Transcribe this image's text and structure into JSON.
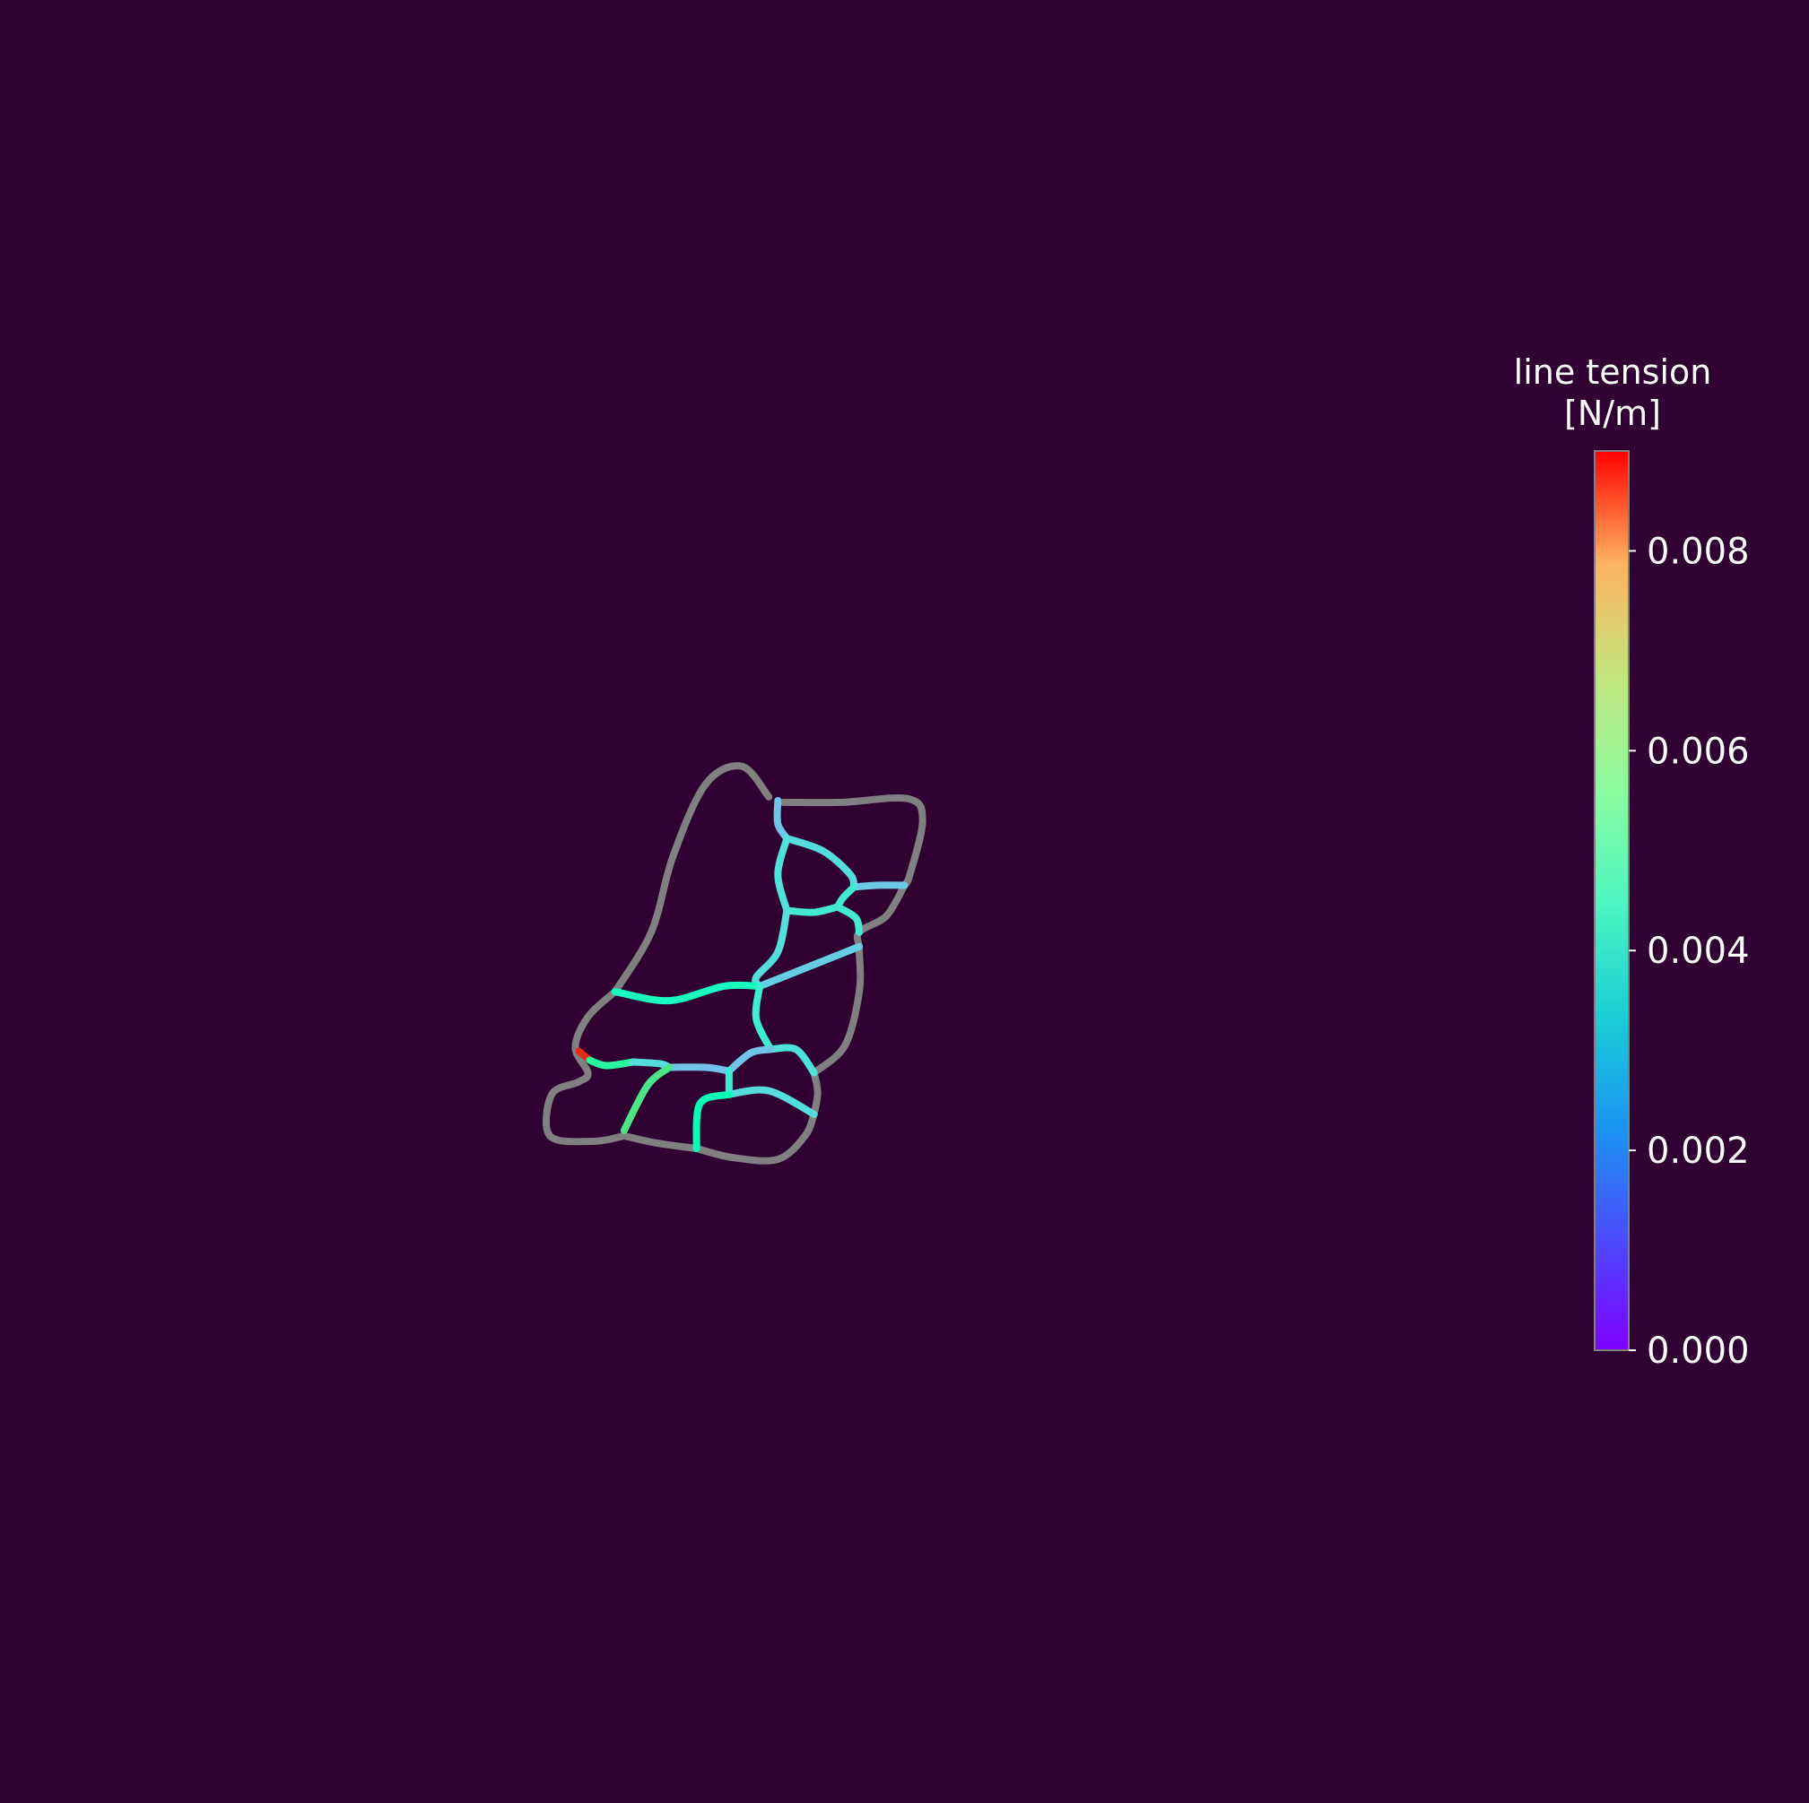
{
  "chart_data": {
    "type": "network",
    "title": "",
    "grid": false,
    "background_color": "#300033",
    "boundary_color": "#808080",
    "colormap": "rainbow",
    "colorbar": {
      "title_line1": "line tension",
      "title_line2": "[N/m]",
      "vmin": 0.0,
      "vmax": 0.009,
      "ticks": [
        0.0,
        0.002,
        0.004,
        0.006,
        0.008
      ],
      "tick_labels": [
        "0.000",
        "0.002",
        "0.004",
        "0.006",
        "0.008"
      ],
      "placement": "right"
    },
    "x_range": [
      0,
      100
    ],
    "y_range": [
      0,
      100
    ],
    "boundary_edges": [
      {
        "points": [
          [
            42.5,
            55.8
          ],
          [
            41.0,
            57.5
          ],
          [
            39.0,
            56.5
          ],
          [
            37.2,
            52.5
          ],
          [
            36.0,
            48.3
          ],
          [
            34.0,
            45.0
          ]
        ]
      },
      {
        "points": [
          [
            43.3,
            55.5
          ],
          [
            46.5,
            55.5
          ],
          [
            50.2,
            55.7
          ],
          [
            51.0,
            54.5
          ],
          [
            50.3,
            51.5
          ],
          [
            50.0,
            50.9
          ]
        ]
      },
      {
        "points": [
          [
            50.0,
            50.9
          ],
          [
            49.0,
            49.2
          ],
          [
            47.5,
            48.3
          ],
          [
            47.5,
            47.3
          ],
          [
            47.5,
            45.0
          ],
          [
            46.7,
            42.0
          ],
          [
            45.0,
            40.5
          ]
        ]
      },
      {
        "points": [
          [
            34.0,
            45.0
          ],
          [
            32.5,
            43.6
          ],
          [
            31.8,
            41.9
          ],
          [
            32.5,
            40.5
          ],
          [
            32.0,
            40.0
          ],
          [
            30.5,
            39.3
          ],
          [
            30.4,
            37.0
          ],
          [
            32.8,
            36.7
          ],
          [
            34.5,
            37.0
          ]
        ]
      },
      {
        "points": [
          [
            34.5,
            37.0
          ],
          [
            36.3,
            36.6
          ],
          [
            38.5,
            36.3
          ]
        ]
      },
      {
        "points": [
          [
            38.5,
            36.3
          ],
          [
            40.5,
            35.8
          ],
          [
            43.0,
            35.7
          ],
          [
            44.5,
            37.0
          ],
          [
            45.0,
            38.2
          ]
        ]
      },
      {
        "points": [
          [
            45.0,
            38.2
          ],
          [
            45.2,
            39.4
          ],
          [
            45.0,
            40.5
          ]
        ]
      }
    ],
    "edges": [
      {
        "tension": 0.0025,
        "points": [
          [
            43.0,
            55.6
          ],
          [
            43.0,
            54.3
          ],
          [
            43.5,
            53.5
          ]
        ]
      },
      {
        "tension": 0.003,
        "points": [
          [
            43.5,
            53.5
          ],
          [
            45.5,
            52.8
          ],
          [
            47.0,
            51.5
          ],
          [
            47.2,
            50.8
          ]
        ]
      },
      {
        "tension": 0.0026,
        "points": [
          [
            47.2,
            50.8
          ],
          [
            48.5,
            50.9
          ],
          [
            50.0,
            50.9
          ]
        ]
      },
      {
        "tension": 0.0031,
        "points": [
          [
            43.5,
            53.5
          ],
          [
            43.0,
            51.5
          ],
          [
            43.5,
            49.5
          ]
        ]
      },
      {
        "tension": 0.0033,
        "points": [
          [
            47.2,
            50.8
          ],
          [
            46.6,
            50.2
          ],
          [
            46.3,
            49.7
          ]
        ]
      },
      {
        "tension": 0.0033,
        "points": [
          [
            43.5,
            49.5
          ],
          [
            45.0,
            49.4
          ],
          [
            46.3,
            49.7
          ]
        ]
      },
      {
        "tension": 0.0033,
        "points": [
          [
            46.3,
            49.7
          ],
          [
            47.3,
            49.1
          ],
          [
            47.5,
            48.3
          ]
        ]
      },
      {
        "tension": 0.003,
        "points": [
          [
            43.5,
            49.5
          ],
          [
            43.0,
            47.2
          ],
          [
            41.8,
            45.8
          ],
          [
            42.0,
            45.3
          ]
        ]
      },
      {
        "tension": 0.0027,
        "points": [
          [
            47.5,
            47.5
          ],
          [
            45.0,
            46.5
          ],
          [
            42.0,
            45.3
          ]
        ]
      },
      {
        "tension": 0.0041,
        "points": [
          [
            34.0,
            45.0
          ],
          [
            37.0,
            44.5
          ],
          [
            40.0,
            45.3
          ],
          [
            42.0,
            45.3
          ]
        ]
      },
      {
        "tension": 0.0034,
        "points": [
          [
            42.0,
            45.3
          ],
          [
            41.8,
            43.5
          ],
          [
            42.6,
            41.8
          ]
        ]
      },
      {
        "tension": 0.0031,
        "points": [
          [
            42.6,
            41.8
          ],
          [
            44.0,
            41.8
          ],
          [
            45.0,
            40.5
          ]
        ]
      },
      {
        "tension": 0.0085,
        "points": [
          [
            32.0,
            41.7
          ],
          [
            32.6,
            41.2
          ]
        ]
      },
      {
        "tension": 0.0052,
        "points": [
          [
            32.6,
            41.2
          ],
          [
            33.5,
            40.9
          ],
          [
            35.0,
            41.1
          ]
        ]
      },
      {
        "tension": 0.003,
        "points": [
          [
            35.0,
            41.1
          ],
          [
            36.5,
            41.0
          ],
          [
            37.0,
            40.8
          ]
        ]
      },
      {
        "tension": 0.0025,
        "points": [
          [
            37.0,
            40.8
          ],
          [
            39.0,
            40.8
          ],
          [
            40.3,
            40.6
          ]
        ]
      },
      {
        "tension": 0.0025,
        "points": [
          [
            40.3,
            40.6
          ],
          [
            41.5,
            41.6
          ],
          [
            42.6,
            41.8
          ]
        ]
      },
      {
        "tension": 0.0058,
        "points": [
          [
            37.0,
            40.8
          ],
          [
            35.8,
            39.8
          ],
          [
            34.5,
            37.3
          ]
        ]
      },
      {
        "tension": 0.0034,
        "points": [
          [
            40.3,
            40.6
          ],
          [
            40.3,
            39.3
          ]
        ]
      },
      {
        "tension": 0.003,
        "points": [
          [
            40.3,
            39.3
          ],
          [
            42.5,
            39.5
          ],
          [
            45.0,
            38.2
          ]
        ]
      },
      {
        "tension": 0.0044,
        "points": [
          [
            40.3,
            39.3
          ],
          [
            38.7,
            38.8
          ],
          [
            38.5,
            36.3
          ]
        ]
      }
    ]
  }
}
